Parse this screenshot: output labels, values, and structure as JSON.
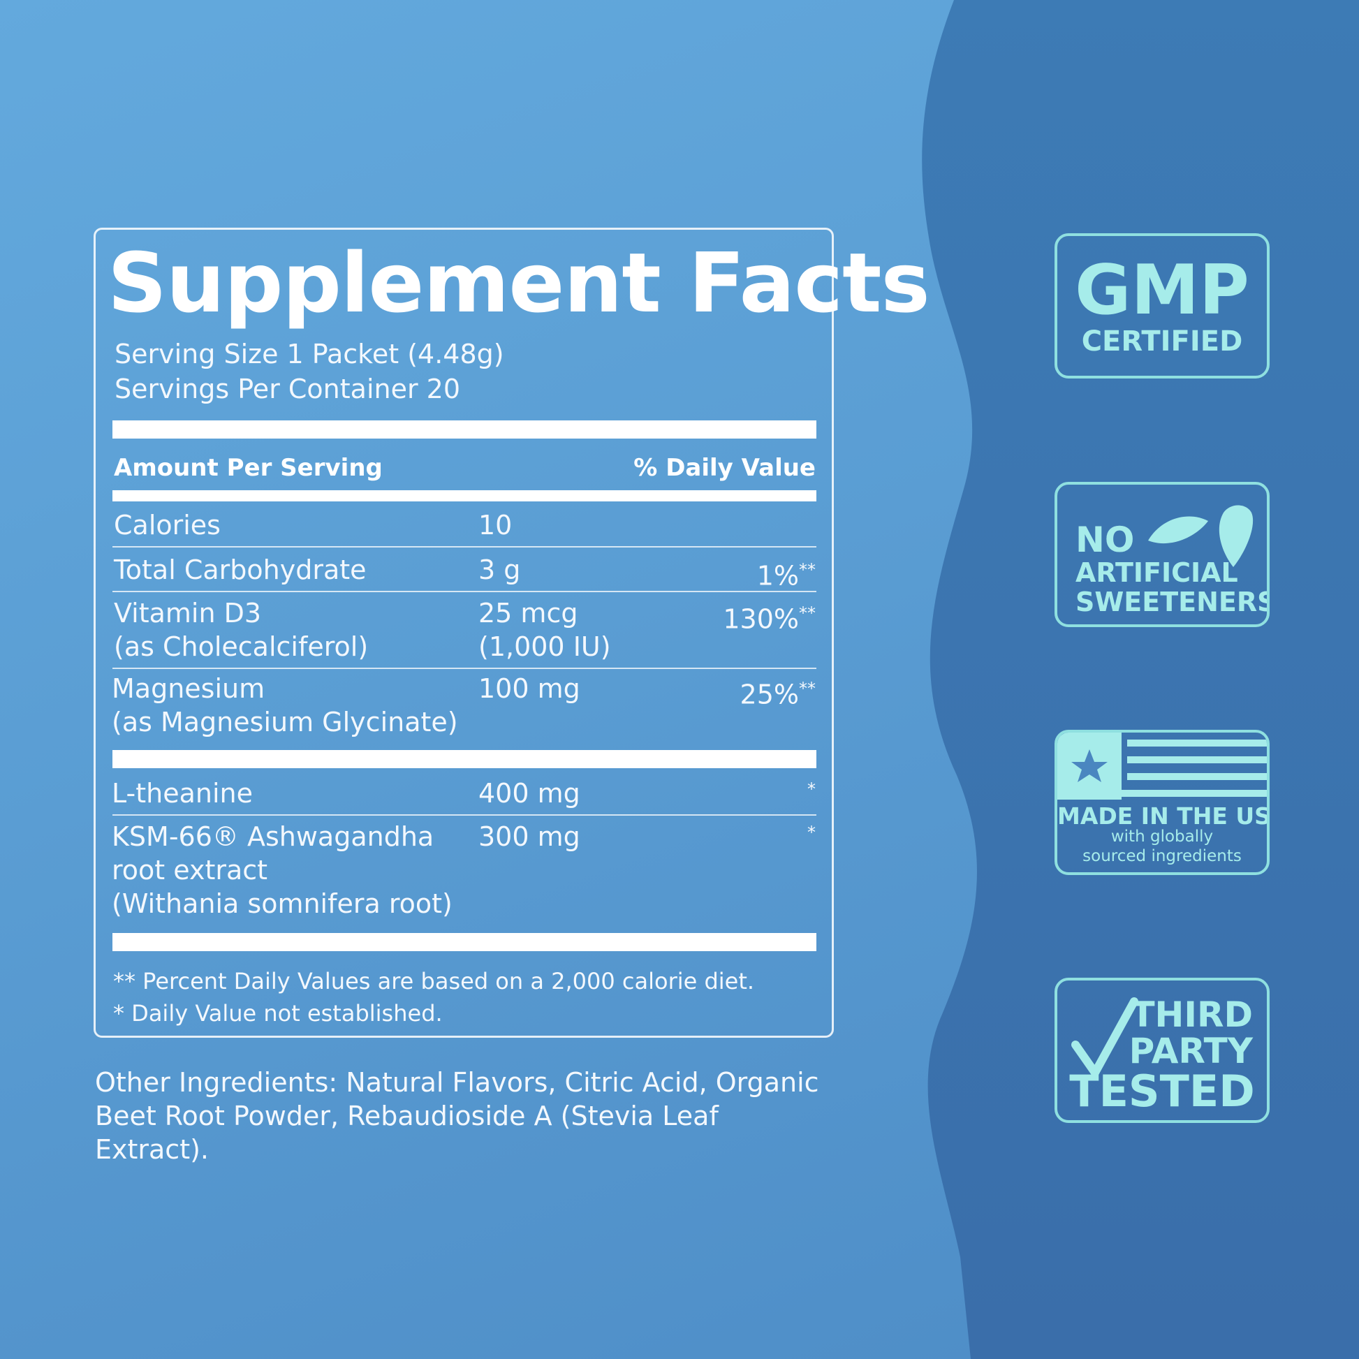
{
  "facts": {
    "title": "Supplement Facts",
    "serving_size": "Serving Size 1 Packet (4.48g)",
    "servings_per_container": "Servings Per Container 20",
    "header_amount": "Amount Per Serving",
    "header_dv": "% Daily Value",
    "rows": [
      {
        "name": "Calories",
        "amount": "10",
        "dv": ""
      },
      {
        "name": "Total Carbohydrate",
        "amount": "3 g",
        "dv": "1%",
        "dv_mark": "**"
      },
      {
        "name": "Vitamin D3",
        "name2": "(as Cholecalciferol)",
        "amount": "25 mcg",
        "amount2": "(1,000 IU)",
        "dv": "130%",
        "dv_mark": "**"
      },
      {
        "name": "Magnesium",
        "name2": "(as Magnesium Glycinate)",
        "amount": "100 mg",
        "dv": "25%",
        "dv_mark": "**"
      },
      {
        "name": "L-theanine",
        "amount": "400 mg",
        "dv_mark": "*"
      },
      {
        "name": "KSM-66® Ashwagandha",
        "name2": "root extract",
        "name3": "(Withania somnifera root)",
        "amount": "300 mg",
        "dv_mark": "*"
      }
    ],
    "footnote1": "** Percent Daily Values are based on a 2,000 calorie diet.",
    "footnote2": "* Daily Value not established."
  },
  "other_ingredients": "Other Ingredients: Natural Flavors, Citric Acid, Organic Beet Root Powder, Rebaudioside A (Stevia Leaf Extract).",
  "badges": {
    "gmp": {
      "big": "GMP",
      "small": "CERTIFIED"
    },
    "no_artificial": {
      "l1": "NO",
      "l2": "ARTIFICIAL",
      "l3": "SWEETENERS"
    },
    "usa": {
      "main": "MADE IN THE USA",
      "sub1": "with globally",
      "sub2": "sourced ingredients"
    },
    "third_party": {
      "l1": "THIRD",
      "l2": "PARTY",
      "l3": "TESTED"
    }
  },
  "colors": {
    "badge_accent": "#a6ecea",
    "bg_light": "#5a9dd3",
    "bg_dark": "#3f78b0"
  },
  "icons": [
    "leaf-icon",
    "flag-icon",
    "star-icon",
    "checkmark-icon"
  ]
}
